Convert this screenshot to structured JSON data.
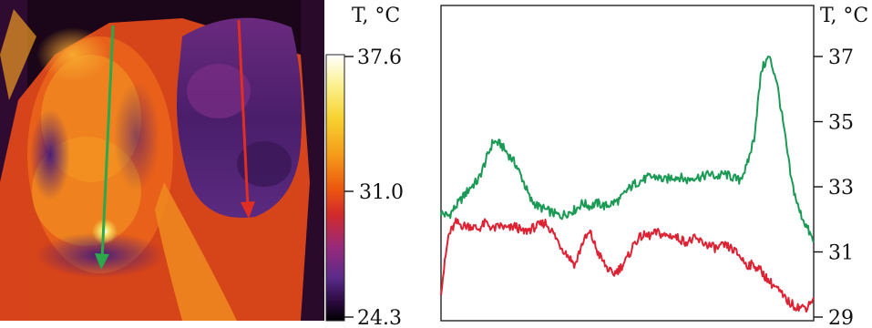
{
  "colors": {
    "green_series": "#1a9a55",
    "red_series": "#dd2233",
    "green_arrow": "#2aa84a",
    "red_arrow": "#e02e22",
    "palette": [
      "#000000",
      "#2a0a3e",
      "#5a2a8a",
      "#9a2a7a",
      "#d22a2a",
      "#ec5a10",
      "#f59a18",
      "#f8d230",
      "#ffffff"
    ]
  },
  "thermogram": {
    "unit_label": "T, °C",
    "scale_ticks": [
      "37.6",
      "31.0",
      "24.3"
    ],
    "scale_max": 37.6,
    "scale_mid": 31.0,
    "scale_min": 24.3,
    "arrow_green_icon": "arrow-down-green-icon",
    "arrow_red_icon": "arrow-down-red-icon"
  },
  "chart_data": {
    "type": "line",
    "ylabel": "T, °C",
    "ylim": [
      29,
      38
    ],
    "yticks": [
      "37",
      "35",
      "33",
      "31",
      "29"
    ],
    "x": [
      0,
      0.02,
      0.04,
      0.06,
      0.08,
      0.1,
      0.12,
      0.14,
      0.16,
      0.18,
      0.2,
      0.22,
      0.24,
      0.26,
      0.28,
      0.3,
      0.32,
      0.34,
      0.36,
      0.38,
      0.4,
      0.42,
      0.44,
      0.46,
      0.48,
      0.5,
      0.52,
      0.54,
      0.56,
      0.58,
      0.6,
      0.62,
      0.64,
      0.66,
      0.68,
      0.7,
      0.72,
      0.74,
      0.76,
      0.78,
      0.8,
      0.82,
      0.84,
      0.86,
      0.88,
      0.9,
      0.92,
      0.94,
      0.96,
      0.98,
      1.0
    ],
    "series": [
      {
        "color": "#1a9a55",
        "values": [
          32.2,
          32.1,
          32.4,
          32.7,
          33.0,
          33.2,
          33.8,
          34.4,
          34.3,
          34.0,
          33.7,
          33.2,
          32.6,
          32.4,
          32.3,
          32.2,
          32.1,
          32.2,
          32.3,
          32.5,
          32.4,
          32.5,
          32.4,
          32.5,
          32.6,
          32.9,
          33.1,
          33.2,
          33.3,
          33.3,
          33.2,
          33.3,
          33.3,
          33.2,
          33.3,
          33.3,
          33.4,
          33.3,
          33.4,
          33.3,
          33.2,
          33.6,
          34.5,
          36.6,
          37.0,
          36.3,
          34.8,
          33.2,
          32.3,
          31.8,
          31.3
        ]
      },
      {
        "color": "#dd2233",
        "values": [
          29.8,
          31.5,
          31.9,
          31.8,
          31.8,
          31.7,
          31.9,
          31.7,
          31.8,
          31.7,
          31.8,
          31.6,
          31.7,
          31.8,
          31.9,
          31.6,
          31.2,
          30.9,
          30.6,
          31.3,
          31.6,
          31.0,
          30.6,
          30.3,
          30.5,
          30.8,
          31.3,
          31.5,
          31.5,
          31.6,
          31.5,
          31.5,
          31.4,
          31.3,
          31.4,
          31.3,
          31.2,
          31.1,
          31.2,
          31.1,
          30.9,
          30.6,
          30.6,
          30.4,
          30.1,
          29.9,
          29.6,
          29.4,
          29.3,
          29.3,
          29.6
        ]
      }
    ]
  }
}
